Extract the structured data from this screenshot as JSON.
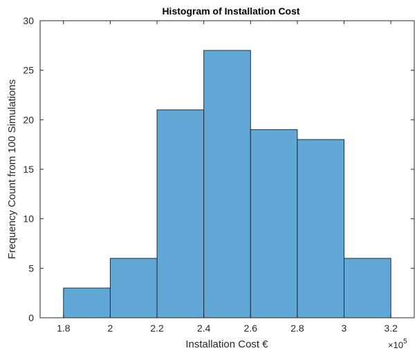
{
  "chart_data": {
    "type": "bar",
    "title": "Histogram of Installation Cost",
    "xlabel": "Installation Cost €",
    "ylabel": "Frequency Count from 100 Simulations",
    "x_scale_note": {
      "base": "×10",
      "exponent": "5"
    },
    "bin_edges": [
      1.8,
      2.0,
      2.2,
      2.4,
      2.6,
      2.8,
      3.0,
      3.2
    ],
    "values": [
      3,
      6,
      21,
      27,
      19,
      18,
      6
    ],
    "xlim": [
      1.7,
      3.3
    ],
    "ylim": [
      0,
      30
    ],
    "xticks": [
      "1.8",
      "2",
      "2.2",
      "2.4",
      "2.6",
      "2.8",
      "3",
      "3.2"
    ],
    "yticks": [
      "0",
      "5",
      "10",
      "15",
      "20",
      "25",
      "30"
    ],
    "grid": false,
    "legend": false,
    "colors": {
      "bar_fill": "#62a8d6",
      "bar_edge": "#1e2b36",
      "axis": "#262626"
    }
  }
}
